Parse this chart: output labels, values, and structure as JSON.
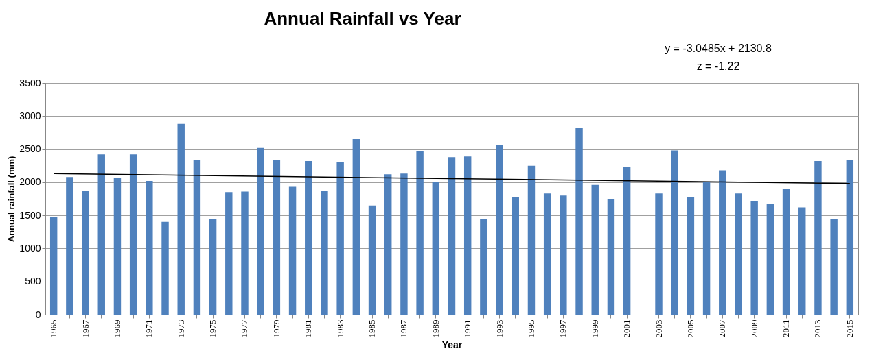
{
  "chart_data": {
    "type": "bar",
    "title": "Annual Rainfall vs Year",
    "xlabel": "Year",
    "ylabel": "Annual rainfall (mm)",
    "categories": [
      "1965",
      null,
      "1967",
      null,
      "1969",
      null,
      "1971",
      null,
      "1973",
      null,
      "1975",
      null,
      "1977",
      null,
      "1979",
      null,
      "1981",
      null,
      "1983",
      null,
      "1985",
      null,
      "1987",
      null,
      "1989",
      null,
      "1991",
      null,
      "1993",
      null,
      "1995",
      null,
      "1997",
      null,
      "1999",
      null,
      "2001",
      null,
      "2003",
      null,
      "2005",
      null,
      "2007",
      null,
      "2009",
      null,
      "2011",
      null,
      "2013",
      null,
      "2015"
    ],
    "series": [
      {
        "color": "#4f81bd",
        "values": [
          1480,
          2080,
          1870,
          2420,
          2060,
          2420,
          2020,
          1400,
          2880,
          2340,
          1450,
          1850,
          1860,
          2520,
          2330,
          1930,
          2320,
          1870,
          2310,
          2650,
          1650,
          2120,
          2130,
          2470,
          2000,
          2380,
          2390,
          1440,
          2560,
          1780,
          2250,
          1830,
          1800,
          2820,
          1960,
          1750,
          2230,
          null,
          1830,
          2480,
          1780,
          2000,
          2180,
          1830,
          1720,
          1670,
          1900,
          1620,
          2320,
          1450,
          2330
        ]
      },
      {
        "type": "line",
        "color": "#000000",
        "values": [
          2130,
          null,
          null,
          null,
          null,
          null,
          null,
          null,
          null,
          null,
          null,
          null,
          null,
          null,
          null,
          null,
          null,
          null,
          null,
          null,
          null,
          null,
          null,
          null,
          null,
          null,
          null,
          null,
          null,
          null,
          null,
          null,
          null,
          null,
          null,
          null,
          null,
          null,
          null,
          null,
          null,
          null,
          null,
          null,
          null,
          null,
          null,
          null,
          null,
          null,
          1980
        ]
      }
    ],
    "ylim": [
      0,
      3500
    ],
    "yticks": [
      0,
      500,
      1000,
      1500,
      2000,
      2500,
      3000,
      3500
    ],
    "grid": "y",
    "annotations": [
      "y = -3.0485x + 2130.8",
      "z  = -1.22"
    ]
  }
}
